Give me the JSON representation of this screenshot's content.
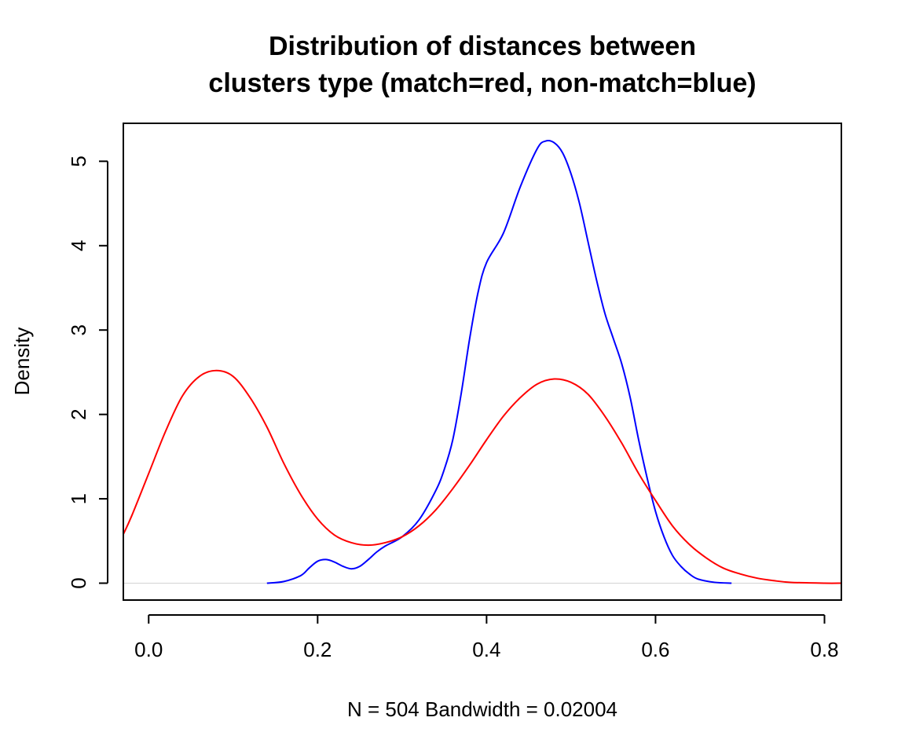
{
  "chart_data": {
    "type": "line",
    "title_line1": "Distribution of distances between",
    "title_line2": "clusters type (match=red, non-match=blue)",
    "xlabel": "N = 504   Bandwidth = 0.02004",
    "ylabel": "Density",
    "xlim": [
      -0.03,
      0.82
    ],
    "ylim": [
      -0.2,
      5.45
    ],
    "x_ticks": [
      0.0,
      0.2,
      0.4,
      0.6,
      0.8
    ],
    "x_tick_labels": [
      "0.0",
      "0.2",
      "0.4",
      "0.6",
      "0.8"
    ],
    "y_ticks": [
      0,
      1,
      2,
      3,
      4,
      5
    ],
    "y_tick_labels": [
      "0",
      "1",
      "2",
      "3",
      "4",
      "5"
    ],
    "baseline_y": 0,
    "series": [
      {
        "color": "#0000ff",
        "points": [
          [
            0.14,
            0.0
          ],
          [
            0.16,
            0.02
          ],
          [
            0.18,
            0.09
          ],
          [
            0.19,
            0.18
          ],
          [
            0.2,
            0.26
          ],
          [
            0.21,
            0.28
          ],
          [
            0.22,
            0.25
          ],
          [
            0.23,
            0.2
          ],
          [
            0.24,
            0.17
          ],
          [
            0.25,
            0.2
          ],
          [
            0.26,
            0.28
          ],
          [
            0.27,
            0.37
          ],
          [
            0.28,
            0.44
          ],
          [
            0.3,
            0.55
          ],
          [
            0.32,
            0.75
          ],
          [
            0.34,
            1.1
          ],
          [
            0.35,
            1.35
          ],
          [
            0.36,
            1.7
          ],
          [
            0.37,
            2.25
          ],
          [
            0.38,
            2.9
          ],
          [
            0.39,
            3.45
          ],
          [
            0.4,
            3.8
          ],
          [
            0.42,
            4.15
          ],
          [
            0.44,
            4.7
          ],
          [
            0.46,
            5.15
          ],
          [
            0.47,
            5.24
          ],
          [
            0.48,
            5.22
          ],
          [
            0.49,
            5.1
          ],
          [
            0.5,
            4.85
          ],
          [
            0.51,
            4.5
          ],
          [
            0.52,
            4.05
          ],
          [
            0.53,
            3.6
          ],
          [
            0.54,
            3.2
          ],
          [
            0.55,
            2.9
          ],
          [
            0.56,
            2.6
          ],
          [
            0.57,
            2.2
          ],
          [
            0.58,
            1.7
          ],
          [
            0.59,
            1.25
          ],
          [
            0.6,
            0.85
          ],
          [
            0.61,
            0.55
          ],
          [
            0.62,
            0.33
          ],
          [
            0.63,
            0.2
          ],
          [
            0.64,
            0.11
          ],
          [
            0.65,
            0.05
          ],
          [
            0.67,
            0.01
          ],
          [
            0.69,
            0.0
          ]
        ]
      },
      {
        "color": "#ff0000",
        "points": [
          [
            -0.03,
            0.58
          ],
          [
            -0.02,
            0.8
          ],
          [
            0.0,
            1.3
          ],
          [
            0.02,
            1.8
          ],
          [
            0.04,
            2.22
          ],
          [
            0.06,
            2.45
          ],
          [
            0.08,
            2.52
          ],
          [
            0.1,
            2.45
          ],
          [
            0.12,
            2.2
          ],
          [
            0.14,
            1.85
          ],
          [
            0.16,
            1.42
          ],
          [
            0.18,
            1.05
          ],
          [
            0.2,
            0.76
          ],
          [
            0.22,
            0.57
          ],
          [
            0.24,
            0.48
          ],
          [
            0.26,
            0.45
          ],
          [
            0.28,
            0.48
          ],
          [
            0.3,
            0.55
          ],
          [
            0.32,
            0.68
          ],
          [
            0.34,
            0.87
          ],
          [
            0.36,
            1.12
          ],
          [
            0.38,
            1.4
          ],
          [
            0.4,
            1.7
          ],
          [
            0.42,
            1.98
          ],
          [
            0.44,
            2.2
          ],
          [
            0.46,
            2.36
          ],
          [
            0.48,
            2.42
          ],
          [
            0.5,
            2.38
          ],
          [
            0.52,
            2.24
          ],
          [
            0.54,
            1.98
          ],
          [
            0.56,
            1.66
          ],
          [
            0.58,
            1.3
          ],
          [
            0.6,
            0.98
          ],
          [
            0.62,
            0.68
          ],
          [
            0.64,
            0.46
          ],
          [
            0.66,
            0.3
          ],
          [
            0.68,
            0.18
          ],
          [
            0.7,
            0.11
          ],
          [
            0.72,
            0.06
          ],
          [
            0.74,
            0.03
          ],
          [
            0.76,
            0.01
          ],
          [
            0.8,
            0.0
          ],
          [
            0.82,
            0.0
          ]
        ]
      }
    ]
  }
}
